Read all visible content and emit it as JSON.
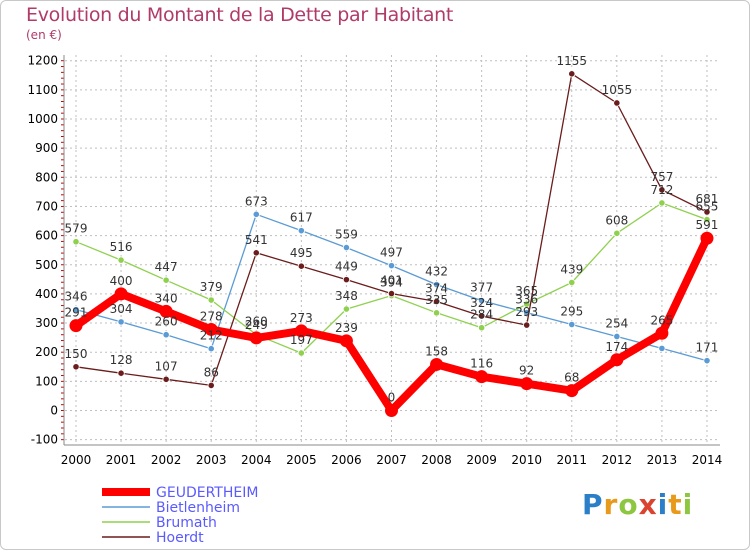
{
  "header": {
    "title": "Evolution du Montant de la Dette par Habitant",
    "subtitle": "(en €)"
  },
  "colors": {
    "title": "#b03a68",
    "grid": "#bfbfbf",
    "axis": "#888888"
  },
  "logo": {
    "text": "Proxiti"
  },
  "chart_data": {
    "type": "line",
    "title": "Evolution du Montant de la Dette par Habitant",
    "ylabel": "(en €)",
    "xlabel": "",
    "ylim": [
      -100,
      1200
    ],
    "yticks": [
      -100,
      0,
      100,
      200,
      300,
      400,
      500,
      600,
      700,
      800,
      900,
      1000,
      1100,
      1200
    ],
    "categories": [
      "2000",
      "2001",
      "2002",
      "2003",
      "2004",
      "2005",
      "2006",
      "2007",
      "2008",
      "2009",
      "2010",
      "2011",
      "2012",
      "2013",
      "2014"
    ],
    "grid": true,
    "legend_position": "bottom-left",
    "series": [
      {
        "name": "Bietlenheim",
        "color": "#5b9bd5",
        "highlight": false,
        "values": [
          346,
          304,
          260,
          212,
          673,
          617,
          559,
          497,
          432,
          377,
          336,
          295,
          254,
          213,
          171
        ],
        "labels": [
          "346",
          "304",
          "260",
          "212",
          "673",
          "617",
          "559",
          "497",
          "432",
          "377",
          "336",
          "295",
          "254",
          "",
          "171"
        ]
      },
      {
        "name": "Brumath",
        "color": "#8fd14f",
        "highlight": false,
        "values": [
          579,
          516,
          447,
          379,
          260,
          197,
          348,
          394,
          335,
          284,
          365,
          439,
          608,
          712,
          655
        ],
        "labels": [
          "579",
          "516",
          "447",
          "379",
          "260",
          "197",
          "348",
          "394",
          "335",
          "284",
          "365",
          "439",
          "608",
          "712",
          "655"
        ]
      },
      {
        "name": "Hoerdt",
        "color": "#6b1c1c",
        "highlight": false,
        "values": [
          150,
          128,
          107,
          86,
          541,
          495,
          449,
          401,
          374,
          324,
          293,
          1155,
          1055,
          757,
          681
        ],
        "labels": [
          "150",
          "128",
          "107",
          "86",
          "541",
          "495",
          "449",
          "401",
          "374",
          "324",
          "293",
          "1155",
          "1055",
          "757",
          "681"
        ]
      },
      {
        "name": "GEUDERTHEIM",
        "color": "#ff0000",
        "highlight": true,
        "values": [
          291,
          400,
          340,
          278,
          249,
          273,
          239,
          0,
          158,
          116,
          92,
          68,
          174,
          265,
          591
        ],
        "labels": [
          "291",
          "400",
          "340",
          "278",
          "249",
          "273",
          "239",
          "0",
          "158",
          "116",
          "92",
          "68",
          "174",
          "265",
          "591"
        ]
      }
    ],
    "legend": [
      {
        "name": "GEUDERTHEIM",
        "color": "#ff0000",
        "text_color": "#5a5aff"
      },
      {
        "name": "Bietlenheim",
        "color": "#5b9bd5",
        "text_color": "#5a5aff"
      },
      {
        "name": "Brumath",
        "color": "#8fd14f",
        "text_color": "#5a5aff"
      },
      {
        "name": "Hoerdt",
        "color": "#6b1c1c",
        "text_color": "#5a5aff"
      }
    ]
  }
}
